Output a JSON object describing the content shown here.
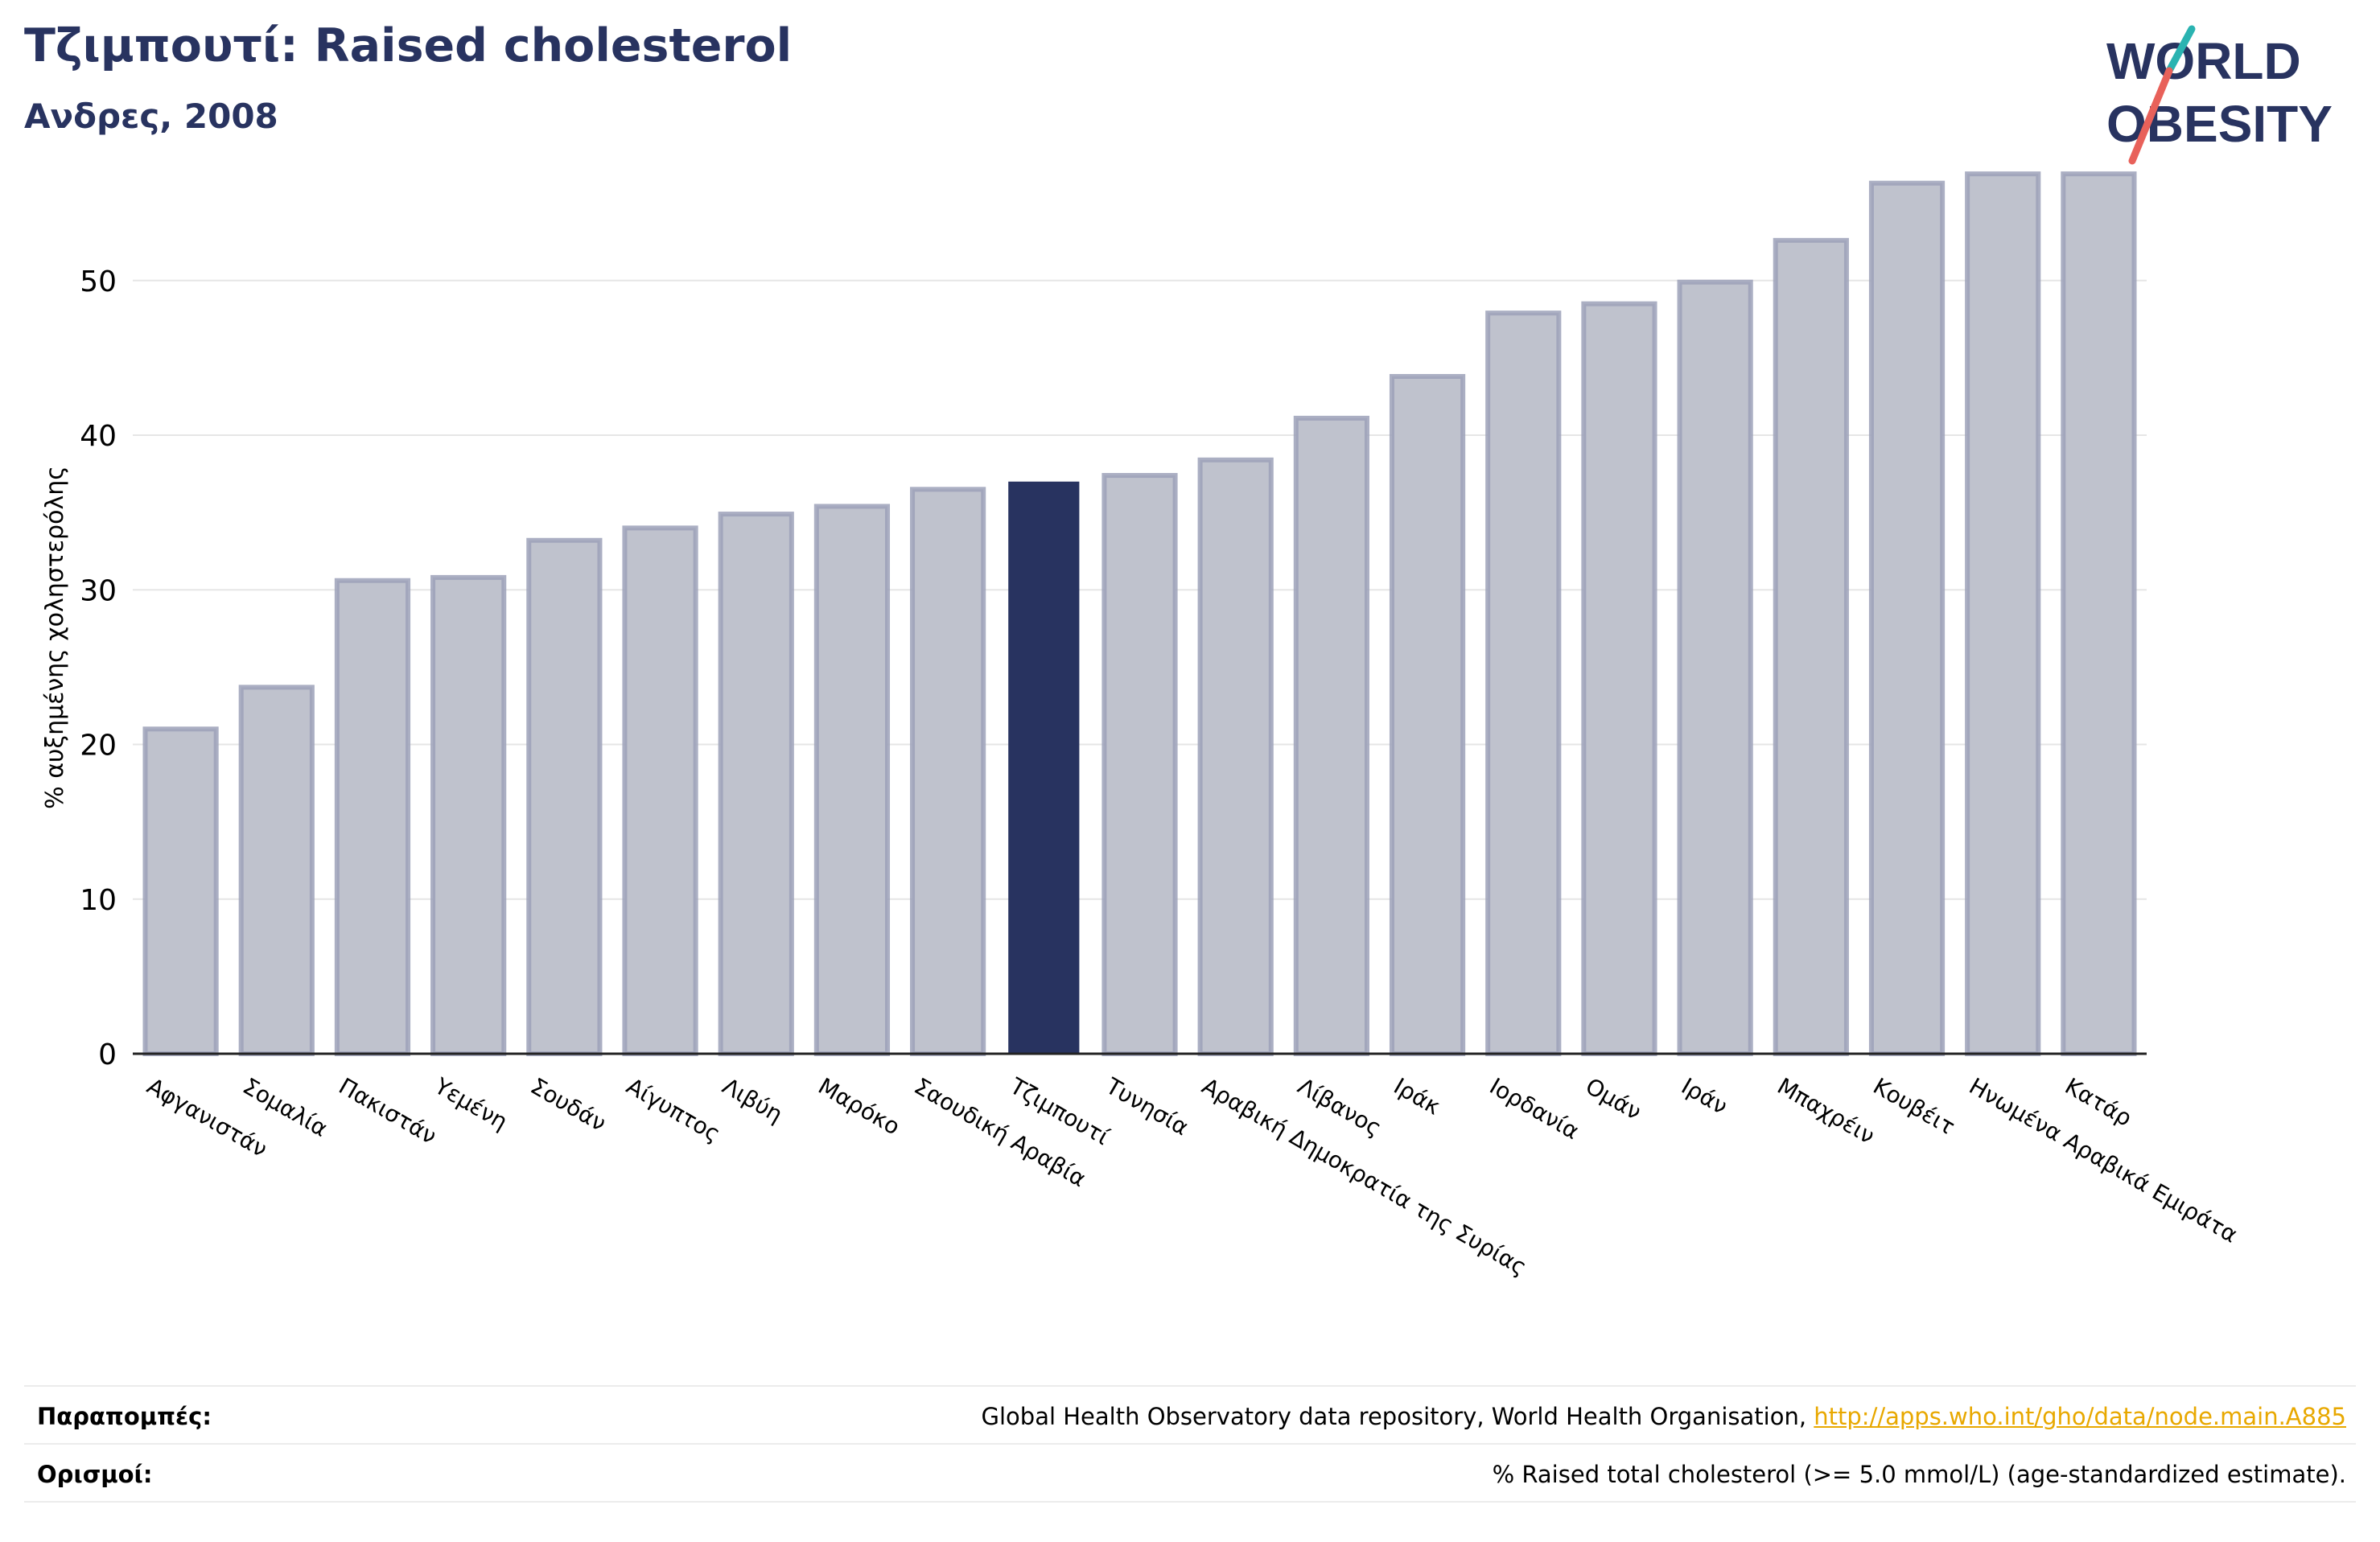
{
  "header": {
    "title": "Τζιμπουτί: Raised cholesterol",
    "subtitle": "Ανδρες, 2008"
  },
  "logo": {
    "line1": "WORLD",
    "line2": "OBESITY",
    "color": "#283360",
    "slash_colors": [
      "#2ab3b1",
      "#e8615a"
    ]
  },
  "chart_data": {
    "type": "bar",
    "ylabel": "% αυξημένης χοληστερόλης",
    "ylim": [
      0,
      58
    ],
    "yticks": [
      0,
      10,
      20,
      30,
      40,
      50
    ],
    "grid": true,
    "highlight_category": "Τζιμπουτί",
    "colors": {
      "bar": "#bfc2cd",
      "bar_edge": "#9ca1b8",
      "highlight": "#283360"
    },
    "categories": [
      "Αφγανιστάν",
      "Σομαλία",
      "Πακιστάν",
      "Υεμένη",
      "Σουδάν",
      "Αίγυπτος",
      "Λιβύη",
      "Μαρόκο",
      "Σαουδική Αραβία",
      "Τζιμπουτί",
      "Τυνησία",
      "Αραβική Δημοκρατία της Συρίας",
      "Λίβανος",
      "Ιράκ",
      "Ιορδανία",
      "Ομάν",
      "Ιράν",
      "Μπαχρέιν",
      "Κουβέιτ",
      "Ηνωμένα Αραβικά Εμιράτα",
      "Κατάρ"
    ],
    "values": [
      21.0,
      23.7,
      30.6,
      30.8,
      33.2,
      34.0,
      34.9,
      35.4,
      36.5,
      37.0,
      37.4,
      38.4,
      41.1,
      43.8,
      47.9,
      48.5,
      49.9,
      52.6,
      56.3,
      56.9,
      56.9
    ]
  },
  "footer": {
    "references_label": "Παραπομπές:",
    "references_text": "Global Health Observatory data repository, World Health Organisation, ",
    "references_link": "http://apps.who.int/gho/data/node.main.A885",
    "definitions_label": "Ορισμοί:",
    "definitions_text": "% Raised total cholesterol (>= 5.0 mmol/L) (age-standardized estimate)."
  }
}
